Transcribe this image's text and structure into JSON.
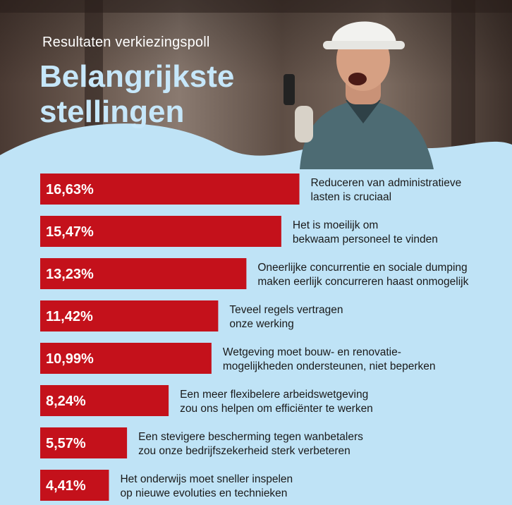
{
  "header": {
    "supertitle": "Resultaten verkiezingspoll",
    "title_line1": "Belangrijkste",
    "title_line2": "stellingen"
  },
  "colors": {
    "bar": "#c4111b",
    "background": "#bfe3f6",
    "title": "#c6e7fa"
  },
  "chart_data": {
    "type": "bar",
    "orientation": "horizontal",
    "unit": "%",
    "categories": [
      [
        "Reduceren van administratieve",
        "lasten is cruciaal"
      ],
      [
        "Het is moeilijk om",
        "bekwaam personeel te vinden"
      ],
      [
        "Oneerlijke concurrentie en sociale dumping",
        "maken eerlijk concurreren haast onmogelijk"
      ],
      [
        "Teveel regels vertragen",
        "onze werking"
      ],
      [
        "Wetgeving moet bouw- en renovatie-",
        "mogelijkheden ondersteunen, niet beperken"
      ],
      [
        "Een meer flexibelere arbeidswetgeving",
        "zou ons helpen om efficiënter te werken"
      ],
      [
        "Een stevigere bescherming tegen wanbetalers",
        "zou onze bedrijfszekerheid sterk verbeteren"
      ],
      [
        "Het onderwijs moet sneller inspelen",
        "op nieuwe evoluties en technieken"
      ]
    ],
    "values": [
      16.63,
      15.47,
      13.23,
      11.42,
      10.99,
      8.24,
      5.57,
      4.41
    ],
    "value_labels": [
      "16,63%",
      "15,47%",
      "13,23%",
      "11,42%",
      "10,99%",
      "8,24%",
      "5,57%",
      "4,41%"
    ]
  }
}
